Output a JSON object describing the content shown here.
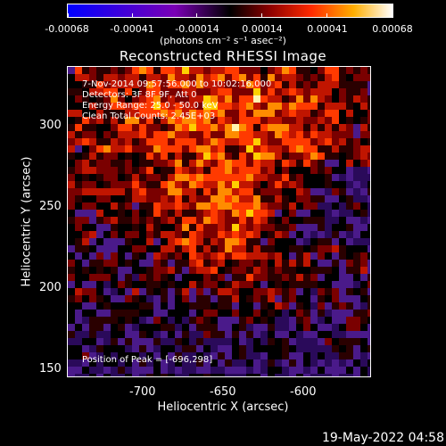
{
  "colorbar": {
    "ticks": [
      "-0.00068",
      "-0.00041",
      "-0.00014",
      "0.00014",
      "0.00041",
      "0.00068"
    ],
    "units": "(photons cm⁻² s⁻¹ asec⁻²)"
  },
  "title": "Reconstructed RHESSI Image",
  "overlay": {
    "line1": "7-Nov-2014 09:57:56.000 to 10:02:16.000",
    "line2": "Detectors: 3F 8F 9F, Att 0",
    "line3": "Energy Range: 25.0 - 50.0 keV",
    "line4": "Clean     Total Counts: 2.45E+03",
    "peak": "Position of Peak = [-696,298]"
  },
  "axes": {
    "y_label": "Heliocentric Y (arcsec)",
    "x_label": "Heliocentric X (arcsec)",
    "y_ticks": [
      "300",
      "250",
      "200",
      "150"
    ],
    "x_ticks": [
      "-700",
      "-650",
      "-600"
    ]
  },
  "timestamp": "19-May-2022 04:58"
}
